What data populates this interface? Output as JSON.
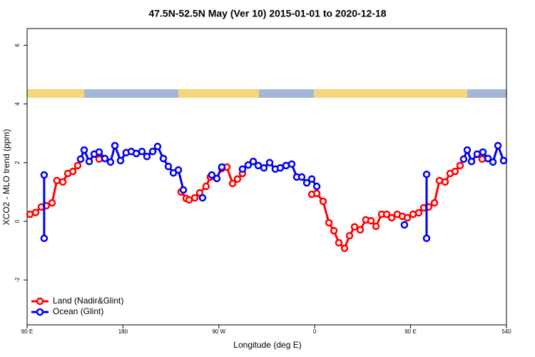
{
  "chart_data": {
    "type": "line",
    "title": "47.5N-52.5N May (Ver 10)   2015-01-01 to 2020-12-18",
    "x_label": "Longitude (deg E)",
    "y_label": "XCO2 - MLO trend (ppm)",
    "xlim": [
      90,
      540
    ],
    "xticks": [
      {
        "value": 90,
        "label": "90 E"
      },
      180,
      {
        "value": 270,
        "label": "90 W"
      },
      {
        "value": 360,
        "label": "0"
      },
      {
        "value": 450,
        "label": "90 E"
      },
      540
    ],
    "ylim": [
      -3.53,
      6.57
    ],
    "yticks": [
      -2,
      0,
      2,
      4,
      6
    ],
    "legend": "bottom-left",
    "series": [
      {
        "name": "Land (Nadir&Glint)",
        "color": "#ff0000",
        "x": [
          92.7,
          98,
          103.4,
          108,
          113.4,
          118,
          123.5,
          128.2,
          132.9,
          137.5,
          null,
          157.6,
          null,
          234.6,
          239.3,
          242,
          247.4,
          252,
          258,
          262,
          null,
          272.8,
          277.5,
          282.9,
          287.5,
          292.2,
          null,
          357.2,
          361.9,
          367.9,
          373.3,
          378,
          382.6,
          388,
          392.7,
          397.4,
          402.7,
          408,
          412.8,
          417.5,
          422.8,
          427.5,
          432.2,
          437.5,
          442.2,
          446.9,
          452.3,
          457.6,
          462.3,
          467,
          472.4,
          477.1,
          482.4,
          487.1,
          491.8,
          496.5,
          null,
          517.2
        ],
        "values": [
          0.24,
          0.3,
          0.49,
          0.53,
          0.63,
          1.39,
          1.34,
          1.63,
          1.7,
          1.9,
          null,
          2.12,
          null,
          1.0,
          0.78,
          0.73,
          0.8,
          0.97,
          1.19,
          1.51,
          null,
          1.8,
          1.85,
          1.29,
          1.44,
          1.63,
          null,
          0.92,
          0.95,
          0.68,
          -0.05,
          -0.32,
          -0.73,
          -0.92,
          -0.49,
          -0.19,
          -0.29,
          0.05,
          0.02,
          -0.17,
          0.24,
          0.24,
          0.12,
          0.24,
          0.17,
          0.12,
          0.24,
          0.29,
          0.46,
          0.49,
          0.63,
          1.39,
          1.34,
          1.63,
          1.7,
          1.9,
          null,
          2.12
        ]
      },
      {
        "name": "Ocean (Glint)",
        "color": "#0000ee",
        "x": [
          106,
          106,
          null,
          140.2,
          143.6,
          148.3,
          153,
          157.6,
          163,
          168.3,
          172.4,
          177.7,
          183,
          187.8,
          192.5,
          197.8,
          202.5,
          207.9,
          212.5,
          217.9,
          222.6,
          227.3,
          232,
          236.7,
          null,
          254.7,
          null,
          263.4,
          268.1,
          272.8,
          null,
          292.2,
          297.6,
          302.3,
          307,
          312.3,
          317.7,
          323,
          327.7,
          333.1,
          338.4,
          343.1,
          347.8,
          352.5,
          357.2,
          361.9,
          null,
          444.2,
          null,
          465,
          465,
          null,
          499.8,
          503.2,
          507.2,
          512.5,
          517.9,
          522.6,
          527.3,
          532,
          537.3
        ],
        "values": [
          1.58,
          -0.58,
          null,
          2.12,
          2.43,
          2.04,
          2.29,
          2.36,
          2.14,
          2.02,
          2.58,
          2.07,
          2.34,
          2.38,
          2.31,
          2.38,
          2.21,
          2.38,
          2.55,
          2.14,
          1.87,
          1.65,
          1.75,
          1.07,
          null,
          0.8,
          null,
          1.58,
          1.46,
          1.85,
          null,
          1.78,
          1.92,
          2.04,
          1.9,
          1.82,
          2.0,
          1.78,
          1.82,
          1.9,
          1.95,
          1.51,
          1.51,
          1.31,
          1.44,
          1.19,
          null,
          -0.12,
          null,
          1.6,
          -0.58,
          null,
          2.12,
          2.43,
          2.04,
          2.29,
          2.36,
          2.14,
          2.02,
          2.58,
          2.07
        ]
      }
    ]
  }
}
